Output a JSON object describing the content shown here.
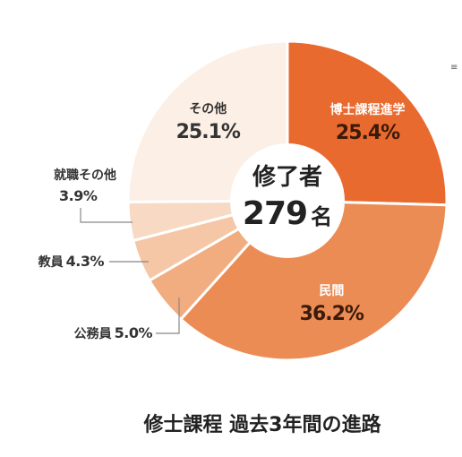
{
  "chart_data": {
    "type": "pie",
    "title": "修士課程 過去3年間の進路",
    "center": {
      "label": "修了者",
      "value": "279",
      "unit": "名"
    },
    "slices": [
      {
        "label": "博士課程進学",
        "value": 25.4,
        "value_text": "25.4%",
        "color": "#e96a2f"
      },
      {
        "label": "民間",
        "value": 36.2,
        "value_text": "36.2%",
        "color": "#ec8c55"
      },
      {
        "label": "公務員",
        "value": 5.0,
        "value_text": "5.0%",
        "color": "#f1ac7f"
      },
      {
        "label": "教員",
        "value": 4.3,
        "value_text": "4.3%",
        "color": "#f5c7a6"
      },
      {
        "label": "就職その他",
        "value": 3.9,
        "value_text": "3.9%",
        "color": "#f8dac4"
      },
      {
        "label": "その他",
        "value": 25.1,
        "value_text": "25.1%",
        "color": "#fcefe5"
      }
    ],
    "legend": "none"
  }
}
